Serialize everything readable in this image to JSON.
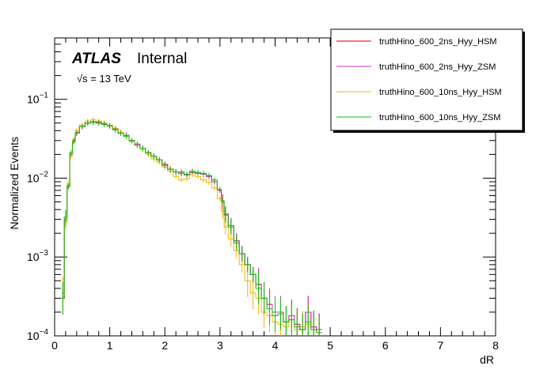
{
  "chart_data": {
    "type": "line",
    "style": "step-histogram",
    "xlabel": "dR",
    "ylabel": "Normalized Events",
    "xlim": [
      0,
      8
    ],
    "ylim": [
      0.0001,
      0.6
    ],
    "yscale": "log",
    "x_ticks": [
      "0",
      "1",
      "2",
      "3",
      "4",
      "5",
      "6",
      "7",
      "8"
    ],
    "y_ticks": [
      {
        "value": 0.1,
        "base": "10",
        "exp": "−1"
      },
      {
        "value": 0.01,
        "base": "10",
        "exp": "−2"
      },
      {
        "value": 0.001,
        "base": "10",
        "exp": "−3"
      },
      {
        "value": 0.0001,
        "base": "10",
        "exp": "−4"
      }
    ],
    "annotations": {
      "atlas": "ATLAS",
      "internal": "Internal",
      "energy": "√s = 13 TeV"
    },
    "legend_position": "top-right",
    "x": [
      0.15,
      0.2,
      0.25,
      0.3,
      0.35,
      0.4,
      0.5,
      0.6,
      0.7,
      0.8,
      0.9,
      1.0,
      1.1,
      1.2,
      1.3,
      1.4,
      1.5,
      1.6,
      1.7,
      1.8,
      1.9,
      2.0,
      2.1,
      2.2,
      2.3,
      2.4,
      2.5,
      2.6,
      2.7,
      2.8,
      2.9,
      3.0,
      3.05,
      3.1,
      3.2,
      3.3,
      3.4,
      3.5,
      3.6,
      3.7,
      3.8,
      3.9,
      4.0,
      4.1,
      4.2,
      4.3,
      4.4,
      4.5,
      4.6,
      4.7,
      4.8
    ],
    "series": [
      {
        "name": "truthHino_600_2ns_Hyy_HSM",
        "color": "#cc0000",
        "values": [
          0.0003,
          0.003,
          0.008,
          0.02,
          0.03,
          0.038,
          0.045,
          0.05,
          0.052,
          0.051,
          0.049,
          0.046,
          0.042,
          0.038,
          0.035,
          0.03,
          0.027,
          0.024,
          0.021,
          0.019,
          0.017,
          0.015,
          0.013,
          0.012,
          0.0115,
          0.011,
          0.0118,
          0.0115,
          0.0112,
          0.0105,
          0.009,
          0.007,
          0.005,
          0.0035,
          0.0025,
          0.0016,
          0.0011,
          0.0008,
          0.0006,
          0.00045,
          0.0003,
          0.00025,
          0.0002,
          0.0002,
          0.00015,
          0.00018,
          0.00014,
          0.00012,
          0.0002,
          0.00013,
          0.00012
        ]
      },
      {
        "name": "truthHino_600_2ns_Hyy_ZSM",
        "color": "#cc33cc",
        "values": [
          0.0003,
          0.003,
          0.008,
          0.02,
          0.03,
          0.038,
          0.045,
          0.05,
          0.052,
          0.051,
          0.049,
          0.046,
          0.042,
          0.038,
          0.035,
          0.03,
          0.027,
          0.024,
          0.021,
          0.019,
          0.017,
          0.015,
          0.013,
          0.012,
          0.0115,
          0.011,
          0.0118,
          0.0115,
          0.0112,
          0.0105,
          0.009,
          0.007,
          0.005,
          0.0035,
          0.0025,
          0.0016,
          0.0011,
          0.0008,
          0.0006,
          0.00045,
          0.0003,
          0.00025,
          0.0002,
          0.0002,
          0.00015,
          0.00018,
          0.00014,
          0.00012,
          0.0002,
          0.00013,
          0.00012
        ]
      },
      {
        "name": "truthHino_600_10ns_Hyy_HSM",
        "color": "#f2b800",
        "values": [
          0.00035,
          0.0028,
          0.0085,
          0.019,
          0.031,
          0.04,
          0.047,
          0.053,
          0.055,
          0.053,
          0.05,
          0.047,
          0.043,
          0.038,
          0.034,
          0.029,
          0.026,
          0.023,
          0.02,
          0.0175,
          0.016,
          0.0138,
          0.0122,
          0.0105,
          0.0095,
          0.0098,
          0.011,
          0.0105,
          0.0095,
          0.0088,
          0.0075,
          0.0055,
          0.0038,
          0.0024,
          0.0017,
          0.0012,
          0.0008,
          0.0005,
          0.00035,
          0.0003,
          0.0002,
          0.00018,
          0.00015,
          0.00014,
          0.00013,
          0.00016,
          0.00012,
          0.00013,
          0.00014,
          0.00012,
          0.00011
        ]
      },
      {
        "name": "truthHino_600_10ns_Hyy_ZSM",
        "color": "#11bb11",
        "values": [
          0.0003,
          0.0032,
          0.0078,
          0.021,
          0.029,
          0.037,
          0.045,
          0.05,
          0.051,
          0.05,
          0.048,
          0.046,
          0.041,
          0.037,
          0.034,
          0.03,
          0.026,
          0.024,
          0.021,
          0.019,
          0.017,
          0.0145,
          0.013,
          0.012,
          0.012,
          0.0112,
          0.0122,
          0.0118,
          0.0115,
          0.0108,
          0.0095,
          0.0072,
          0.0052,
          0.0034,
          0.0024,
          0.0015,
          0.0011,
          0.0008,
          0.0006,
          0.0004,
          0.0003,
          0.00022,
          0.00018,
          0.00019,
          0.00015,
          0.00016,
          0.00013,
          0.00012,
          0.00015,
          0.00012,
          0.00011
        ]
      }
    ]
  }
}
